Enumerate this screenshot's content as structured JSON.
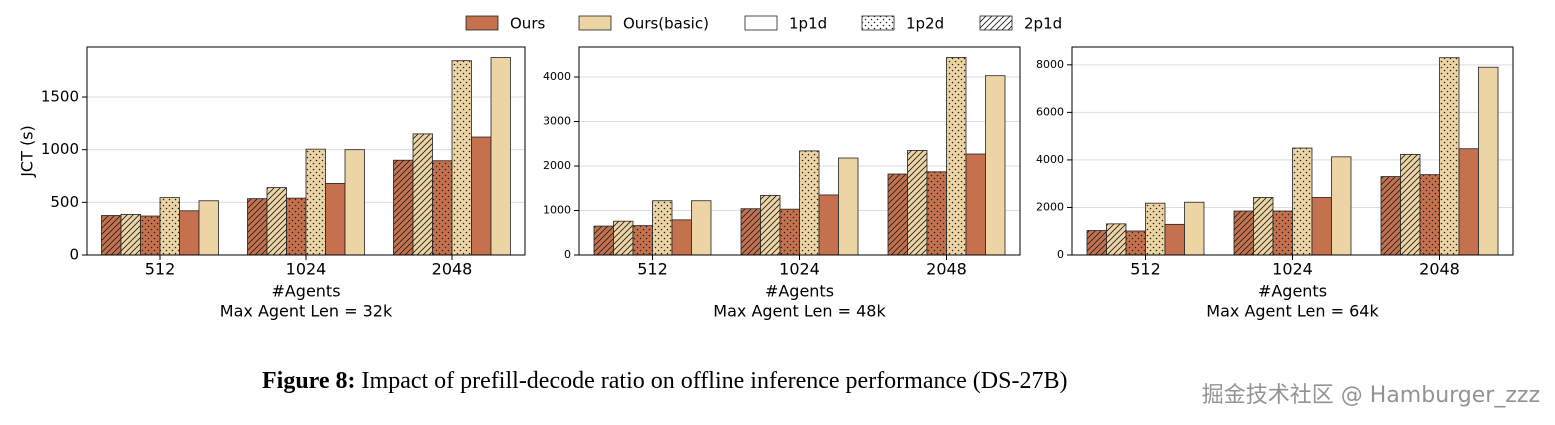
{
  "legend": {
    "methods": [
      {
        "name": "Ours",
        "color": "#c6714d"
      },
      {
        "name": "Ours(basic)",
        "color": "#ecd4a4"
      }
    ],
    "configs": [
      {
        "name": "1p1d",
        "hatch": "none"
      },
      {
        "name": "1p2d",
        "hatch": "dots"
      },
      {
        "name": "2p1d",
        "hatch": "diagonal"
      }
    ]
  },
  "chart_data": [
    {
      "type": "bar",
      "categories": [
        "512",
        "1024",
        "2048"
      ],
      "x_label": "#Agents",
      "x_sublabel": "Max Agent Len = 32k",
      "y_label": "JCT (s)",
      "ylim": [
        0,
        1975
      ],
      "yticks": [
        0,
        500,
        1000,
        1500
      ],
      "grid": true,
      "series": [
        {
          "method": "Ours",
          "config": "2p1d",
          "values": [
            375,
            535,
            900
          ]
        },
        {
          "method": "Ours(basic)",
          "config": "2p1d",
          "values": [
            385,
            640,
            1150
          ]
        },
        {
          "method": "Ours",
          "config": "1p2d",
          "values": [
            370,
            540,
            895
          ]
        },
        {
          "method": "Ours(basic)",
          "config": "1p2d",
          "values": [
            545,
            1005,
            1845
          ]
        },
        {
          "method": "Ours",
          "config": "1p1d",
          "values": [
            420,
            680,
            1120
          ]
        },
        {
          "method": "Ours(basic)",
          "config": "1p1d",
          "values": [
            515,
            1000,
            1875
          ]
        }
      ]
    },
    {
      "type": "bar",
      "categories": [
        "512",
        "1024",
        "2048"
      ],
      "x_label": "#Agents",
      "x_sublabel": "Max Agent Len = 48k",
      "ylim": [
        0,
        4675
      ],
      "yticks": [
        0,
        1000,
        2000,
        3000,
        4000
      ],
      "grid": true,
      "series": [
        {
          "method": "Ours",
          "config": "2p1d",
          "values": [
            650,
            1040,
            1820
          ]
        },
        {
          "method": "Ours(basic)",
          "config": "2p1d",
          "values": [
            760,
            1340,
            2350
          ]
        },
        {
          "method": "Ours",
          "config": "1p2d",
          "values": [
            660,
            1030,
            1870
          ]
        },
        {
          "method": "Ours(basic)",
          "config": "1p2d",
          "values": [
            1220,
            2340,
            4440
          ]
        },
        {
          "method": "Ours",
          "config": "1p1d",
          "values": [
            790,
            1350,
            2270
          ]
        },
        {
          "method": "Ours(basic)",
          "config": "1p1d",
          "values": [
            1220,
            2180,
            4030
          ]
        }
      ]
    },
    {
      "type": "bar",
      "categories": [
        "512",
        "1024",
        "2048"
      ],
      "x_label": "#Agents",
      "x_sublabel": "Max Agent Len = 64k",
      "ylim": [
        0,
        8750
      ],
      "yticks": [
        0,
        2000,
        4000,
        6000,
        8000
      ],
      "grid": true,
      "series": [
        {
          "method": "Ours",
          "config": "2p1d",
          "values": [
            1030,
            1850,
            3300
          ]
        },
        {
          "method": "Ours(basic)",
          "config": "2p1d",
          "values": [
            1310,
            2420,
            4230
          ]
        },
        {
          "method": "Ours",
          "config": "1p2d",
          "values": [
            1010,
            1850,
            3380
          ]
        },
        {
          "method": "Ours(basic)",
          "config": "1p2d",
          "values": [
            2180,
            4500,
            8300
          ]
        },
        {
          "method": "Ours",
          "config": "1p1d",
          "values": [
            1290,
            2420,
            4470
          ]
        },
        {
          "method": "Ours(basic)",
          "config": "1p1d",
          "values": [
            2220,
            4130,
            7900
          ]
        }
      ]
    }
  ],
  "figure": {
    "label": "Figure 8:",
    "caption": "Impact of prefill-decode ratio on offline inference performance (DS-27B)"
  },
  "watermark": "掘金技术社区 @ Hamburger_zzz"
}
